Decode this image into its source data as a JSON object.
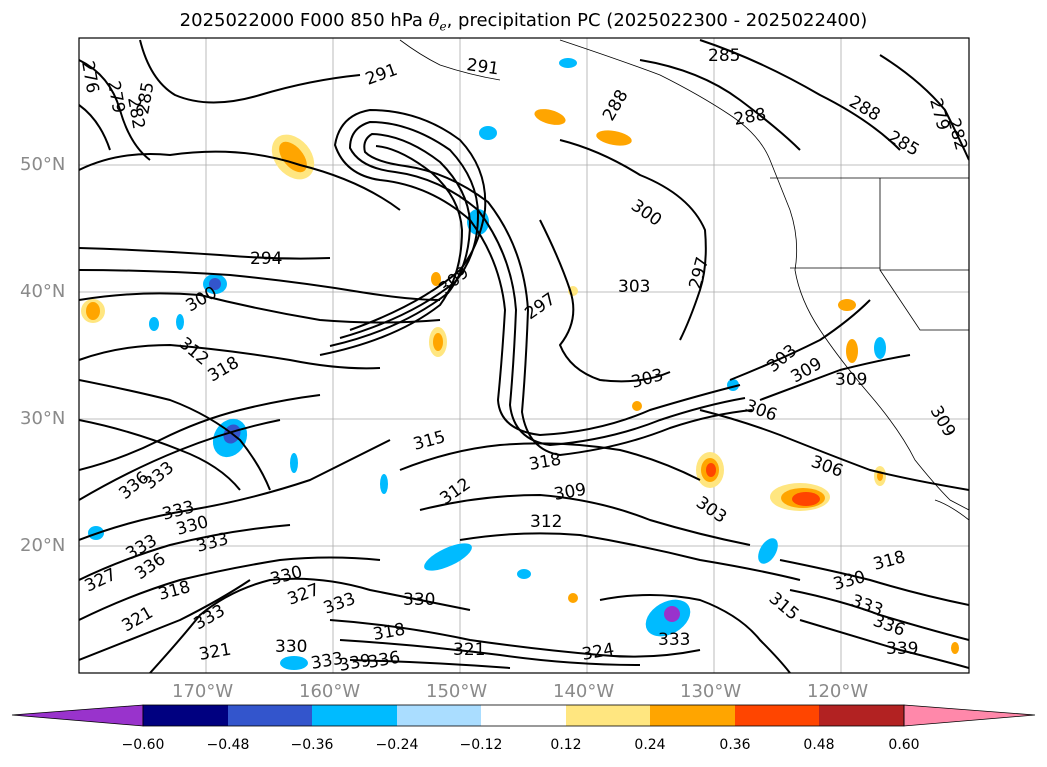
{
  "title": {
    "prefix": "2025022000 F000 850 hPa ",
    "symbol": "θ",
    "subscript": "e",
    "suffix": ", precipitation PC (2025022300 - 2025022400)"
  },
  "map": {
    "projection": "Cylindrical (PlateCarree)",
    "extent": {
      "lon_min": -180,
      "lon_max": -110,
      "lat_min": 10,
      "lat_max": 60
    },
    "gridlines": true,
    "lat_labels": [
      "50°N",
      "40°N",
      "30°N",
      "20°N"
    ],
    "lon_labels": [
      "170°W",
      "160°W",
      "150°W",
      "140°W",
      "130°W",
      "120°W"
    ],
    "contour_variable": "850 hPa equivalent potential temperature (K)",
    "contour_labels": [
      "276",
      "279",
      "282",
      "285",
      "288",
      "291",
      "294",
      "297",
      "300",
      "303",
      "306",
      "309",
      "312",
      "315",
      "318",
      "321",
      "324",
      "327",
      "330",
      "333",
      "336",
      "339"
    ]
  },
  "colorbar": {
    "ticks": [
      "−0.60",
      "−0.48",
      "−0.36",
      "−0.24",
      "−0.12",
      "0.12",
      "0.24",
      "0.36",
      "0.48",
      "0.60"
    ],
    "colors": [
      "#9933cc",
      "#000080",
      "#3355cc",
      "#00bbff",
      "#aaddff",
      "#ffffff",
      "#ffe680",
      "#ffa500",
      "#ff4500",
      "#b22222",
      "#ff88aa"
    ],
    "extend": "both"
  }
}
